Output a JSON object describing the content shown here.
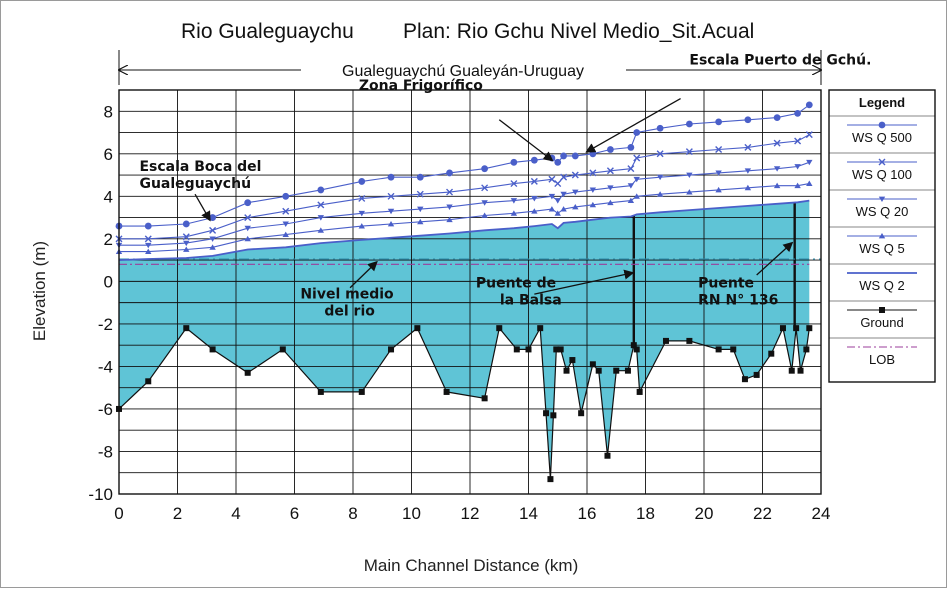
{
  "chart_data": {
    "type": "line",
    "title_river": "Rio Gualeguaychu",
    "title_plan": "Plan: Rio Gchu Nivel Medio_Sit.Acual",
    "span_label": "Gualeguaychú Gualeyán-Uruguay",
    "xlabel": "Main Channel Distance (km)",
    "ylabel": "Elevation (m)",
    "xlim": [
      0,
      24
    ],
    "ylim": [
      -10,
      9
    ],
    "xticks": [
      "0",
      "2",
      "4",
      "6",
      "8",
      "10",
      "12",
      "14",
      "16",
      "18",
      "20",
      "22",
      "24"
    ],
    "yticks": [
      "8",
      "6",
      "4",
      "2",
      "0",
      "-2",
      "-4",
      "-6",
      "-8",
      "-10"
    ],
    "legend_title": "Legend",
    "series": [
      {
        "name": "WS Q 500",
        "color": "#4a5fc9",
        "marker": "circle",
        "x": [
          0,
          1,
          2.3,
          3.2,
          4.4,
          5.7,
          6.9,
          8.3,
          9.3,
          10.3,
          11.3,
          12.5,
          13.5,
          14.2,
          14.8,
          15.0,
          15.2,
          15.6,
          16.2,
          16.8,
          17.5,
          17.7,
          18.5,
          19.5,
          20.5,
          21.5,
          22.5,
          23.2,
          23.6
        ],
        "y": [
          2.6,
          2.6,
          2.7,
          3.0,
          3.7,
          4.0,
          4.3,
          4.7,
          4.9,
          4.9,
          5.1,
          5.3,
          5.6,
          5.7,
          5.8,
          5.6,
          5.9,
          5.9,
          6.0,
          6.2,
          6.3,
          7.0,
          7.2,
          7.4,
          7.5,
          7.6,
          7.7,
          7.9,
          8.3
        ]
      },
      {
        "name": "WS Q 100",
        "color": "#4a5fc9",
        "marker": "x",
        "x": [
          0,
          1,
          2.3,
          3.2,
          4.4,
          5.7,
          6.9,
          8.3,
          9.3,
          10.3,
          11.3,
          12.5,
          13.5,
          14.2,
          14.8,
          15.0,
          15.2,
          15.6,
          16.2,
          16.8,
          17.5,
          17.7,
          18.5,
          19.5,
          20.5,
          21.5,
          22.5,
          23.2,
          23.6
        ],
        "y": [
          2.0,
          2.0,
          2.1,
          2.4,
          3.0,
          3.3,
          3.6,
          3.9,
          4.0,
          4.1,
          4.2,
          4.4,
          4.6,
          4.7,
          4.8,
          4.6,
          4.9,
          5.0,
          5.1,
          5.2,
          5.3,
          5.8,
          6.0,
          6.1,
          6.2,
          6.3,
          6.5,
          6.6,
          6.9
        ]
      },
      {
        "name": "WS Q 20",
        "color": "#4a5fc9",
        "marker": "triangle-down",
        "x": [
          0,
          1,
          2.3,
          3.2,
          4.4,
          5.7,
          6.9,
          8.3,
          9.3,
          10.3,
          11.3,
          12.5,
          13.5,
          14.2,
          14.8,
          15.0,
          15.2,
          15.6,
          16.2,
          16.8,
          17.5,
          17.7,
          18.5,
          19.5,
          20.5,
          21.5,
          22.5,
          23.2,
          23.6
        ],
        "y": [
          1.7,
          1.7,
          1.8,
          2.0,
          2.5,
          2.7,
          3.0,
          3.2,
          3.3,
          3.4,
          3.5,
          3.7,
          3.8,
          3.9,
          4.0,
          3.8,
          4.1,
          4.2,
          4.3,
          4.4,
          4.5,
          4.8,
          4.9,
          5.0,
          5.1,
          5.2,
          5.3,
          5.4,
          5.6
        ]
      },
      {
        "name": "WS Q 5",
        "color": "#4a5fc9",
        "marker": "triangle-up",
        "x": [
          0,
          1,
          2.3,
          3.2,
          4.4,
          5.7,
          6.9,
          8.3,
          9.3,
          10.3,
          11.3,
          12.5,
          13.5,
          14.2,
          14.8,
          15.0,
          15.2,
          15.6,
          16.2,
          16.8,
          17.5,
          17.7,
          18.5,
          19.5,
          20.5,
          21.5,
          22.5,
          23.2,
          23.6
        ],
        "y": [
          1.4,
          1.4,
          1.5,
          1.6,
          2.0,
          2.2,
          2.4,
          2.6,
          2.7,
          2.8,
          2.9,
          3.1,
          3.2,
          3.3,
          3.4,
          3.2,
          3.4,
          3.5,
          3.6,
          3.7,
          3.8,
          4.0,
          4.1,
          4.2,
          4.3,
          4.4,
          4.5,
          4.5,
          4.6
        ]
      },
      {
        "name": "WS Q 2",
        "color": "#4a5fc9",
        "marker": "none",
        "x": [
          0,
          1,
          2.3,
          3.2,
          4.4,
          5.7,
          6.9,
          8.3,
          9.3,
          10.3,
          11.3,
          12.5,
          13.5,
          14.2,
          14.8,
          15.0,
          15.2,
          15.6,
          16.2,
          16.8,
          17.5,
          17.7,
          18.5,
          19.5,
          20.5,
          21.5,
          22.5,
          23.2,
          23.6
        ],
        "y": [
          1.0,
          1.05,
          1.1,
          1.2,
          1.5,
          1.6,
          1.8,
          1.95,
          2.05,
          2.15,
          2.25,
          2.4,
          2.5,
          2.6,
          2.7,
          2.5,
          2.75,
          2.8,
          2.9,
          3.0,
          3.05,
          3.15,
          3.25,
          3.35,
          3.45,
          3.55,
          3.65,
          3.72,
          3.8
        ]
      },
      {
        "name": "Ground",
        "color": "#111111",
        "marker": "square",
        "x": [
          0,
          1,
          2.3,
          3.2,
          4.4,
          5.6,
          6.9,
          8.3,
          9.3,
          10.2,
          11.2,
          12.5,
          13.0,
          13.6,
          14.0,
          14.4,
          14.6,
          14.75,
          14.85,
          14.95,
          15.1,
          15.3,
          15.5,
          15.8,
          16.2,
          16.4,
          16.7,
          17.0,
          17.4,
          17.6,
          17.7,
          17.8,
          18.7,
          19.5,
          20.5,
          21.0,
          21.4,
          21.8,
          22.3,
          22.7,
          23.0,
          23.15,
          23.3,
          23.5,
          23.6
        ],
        "y": [
          -6.0,
          -4.7,
          -2.2,
          -3.2,
          -4.3,
          -3.2,
          -5.2,
          -5.2,
          -3.2,
          -2.2,
          -5.2,
          -5.5,
          -2.2,
          -3.2,
          -3.2,
          -2.2,
          -6.2,
          -9.3,
          -6.3,
          -3.2,
          -3.2,
          -4.2,
          -3.7,
          -6.2,
          -3.9,
          -4.2,
          -8.2,
          -4.2,
          -4.2,
          -3.0,
          -3.2,
          -5.2,
          -2.8,
          -2.8,
          -3.2,
          -3.2,
          -4.6,
          -4.4,
          -3.4,
          -2.2,
          -4.2,
          -2.2,
          -4.2,
          -3.2,
          -2.2
        ]
      },
      {
        "name": "LOB",
        "color": "#9b3d9b",
        "marker": "dashdot",
        "x": [
          0,
          23.6
        ],
        "y": [
          0.8,
          0.8
        ]
      }
    ],
    "nivel_medio": {
      "name": "Nivel medio del rio",
      "y": 1.05,
      "color": "#2c8aa8"
    },
    "water_fill_color": "#5fc4d6",
    "annotations": [
      {
        "text": "Escala Boca del",
        "text2": "Gualeguaychú",
        "label_x": 0.7,
        "label_y": 5.2,
        "arrow_to_x": 3.1,
        "arrow_to_y": 2.9
      },
      {
        "text": "Zona Frigorífico",
        "label_x": 8.2,
        "label_y": 9.0,
        "arrow_to_x": 14.8,
        "arrow_to_y": 5.7
      },
      {
        "text": "Escala Puerto de Gchú.",
        "label_x": 19.5,
        "label_y": 10.2,
        "arrow_to_x": 16.0,
        "arrow_to_y": 6.1
      },
      {
        "text": "Nivel medio",
        "text2": "del rio",
        "label_x": 6.2,
        "label_y": -0.8,
        "arrow_to_x": 8.8,
        "arrow_to_y": 0.9
      },
      {
        "text": "Puente de",
        "text2": "la Balsa",
        "label_x": 12.2,
        "label_y": -0.3,
        "arrow_to_x": 17.55,
        "arrow_to_y": 0.4
      },
      {
        "text": "Puente",
        "text2": "RN N° 136",
        "label_x": 19.8,
        "label_y": -0.3,
        "arrow_to_x": 23.0,
        "arrow_to_y": 1.8
      }
    ]
  }
}
